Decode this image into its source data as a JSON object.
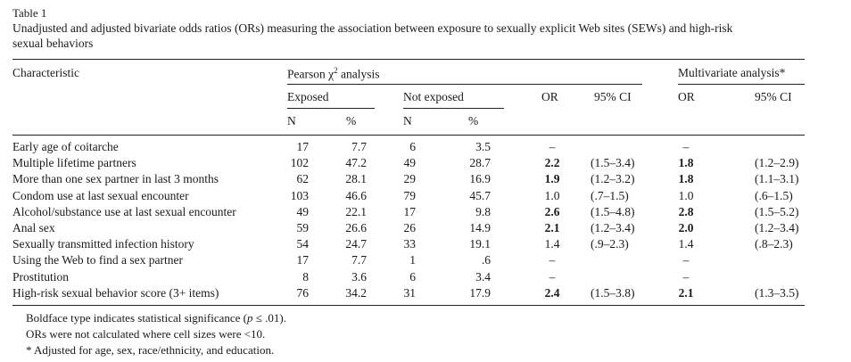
{
  "table_label": "Table 1",
  "caption_line1": "Unadjusted and adjusted bivariate odds ratios (ORs) measuring the association between exposure to sexually explicit Web sites (SEWs) and high-risk",
  "caption_line2": "sexual behaviors",
  "headers": {
    "characteristic": "Characteristic",
    "pearson_prefix": "Pearson χ",
    "pearson_sup": "2",
    "pearson_suffix": " analysis",
    "multivariate": "Multivariate analysis*",
    "exposed": "Exposed",
    "not_exposed": "Not exposed",
    "or": "OR",
    "ci": "95% CI",
    "n": "N",
    "pct": "%"
  },
  "rows": [
    {
      "label": "Early age of coitarche",
      "en": "17",
      "ep": "7.7",
      "nn": "6",
      "np": "3.5",
      "or": "–",
      "or_b": false,
      "ci": "",
      "aor": "–",
      "aor_b": false,
      "aci": ""
    },
    {
      "label": "Multiple lifetime partners",
      "en": "102",
      "ep": "47.2",
      "nn": "49",
      "np": "28.7",
      "or": "2.2",
      "or_b": true,
      "ci": "(1.5–3.4)",
      "aor": "1.8",
      "aor_b": true,
      "aci": "(1.2–2.9)"
    },
    {
      "label": "More than one sex partner in last 3 months",
      "en": "62",
      "ep": "28.1",
      "nn": "29",
      "np": "16.9",
      "or": "1.9",
      "or_b": true,
      "ci": "(1.2–3.2)",
      "aor": "1.8",
      "aor_b": true,
      "aci": "(1.1–3.1)"
    },
    {
      "label": "Condom use at last sexual encounter",
      "en": "103",
      "ep": "46.6",
      "nn": "79",
      "np": "45.7",
      "or": "1.0",
      "or_b": false,
      "ci": "(.7–1.5)",
      "aor": "1.0",
      "aor_b": false,
      "aci": "(.6–1.5)"
    },
    {
      "label": "Alcohol/substance use at last sexual encounter",
      "en": "49",
      "ep": "22.1",
      "nn": "17",
      "np": "9.8",
      "or": "2.6",
      "or_b": true,
      "ci": "(1.5–4.8)",
      "aor": "2.8",
      "aor_b": true,
      "aci": "(1.5–5.2)"
    },
    {
      "label": "Anal sex",
      "en": "59",
      "ep": "26.6",
      "nn": "26",
      "np": "14.9",
      "or": "2.1",
      "or_b": true,
      "ci": "(1.2–3.4)",
      "aor": "2.0",
      "aor_b": true,
      "aci": "(1.2–3.4)"
    },
    {
      "label": "Sexually transmitted infection history",
      "en": "54",
      "ep": "24.7",
      "nn": "33",
      "np": "19.1",
      "or": "1.4",
      "or_b": false,
      "ci": "(.9–2.3)",
      "aor": "1.4",
      "aor_b": false,
      "aci": "(.8–2.3)"
    },
    {
      "label": "Using the Web to find a sex partner",
      "en": "17",
      "ep": "7.7",
      "nn": "1",
      "np": ".6",
      "or": "–",
      "or_b": false,
      "ci": "",
      "aor": "–",
      "aor_b": false,
      "aci": ""
    },
    {
      "label": "Prostitution",
      "en": "8",
      "ep": "3.6",
      "nn": "6",
      "np": "3.4",
      "or": "–",
      "or_b": false,
      "ci": "",
      "aor": "–",
      "aor_b": false,
      "aci": ""
    },
    {
      "label": "High-risk sexual behavior score (3+ items)",
      "en": "76",
      "ep": "34.2",
      "nn": "31",
      "np": "17.9",
      "or": "2.4",
      "or_b": true,
      "ci": "(1.5–3.8)",
      "aor": "2.1",
      "aor_b": true,
      "aci": "(1.3–3.5)"
    }
  ],
  "footnotes": {
    "fn1_pre": "Boldface type indicates statistical significance (",
    "fn1_p": "p",
    "fn1_post": " ≤ .01).",
    "fn2": "ORs were not calculated where cell sizes were <10.",
    "fn3": "* Adjusted for age, sex, race/ethnicity, and education."
  }
}
